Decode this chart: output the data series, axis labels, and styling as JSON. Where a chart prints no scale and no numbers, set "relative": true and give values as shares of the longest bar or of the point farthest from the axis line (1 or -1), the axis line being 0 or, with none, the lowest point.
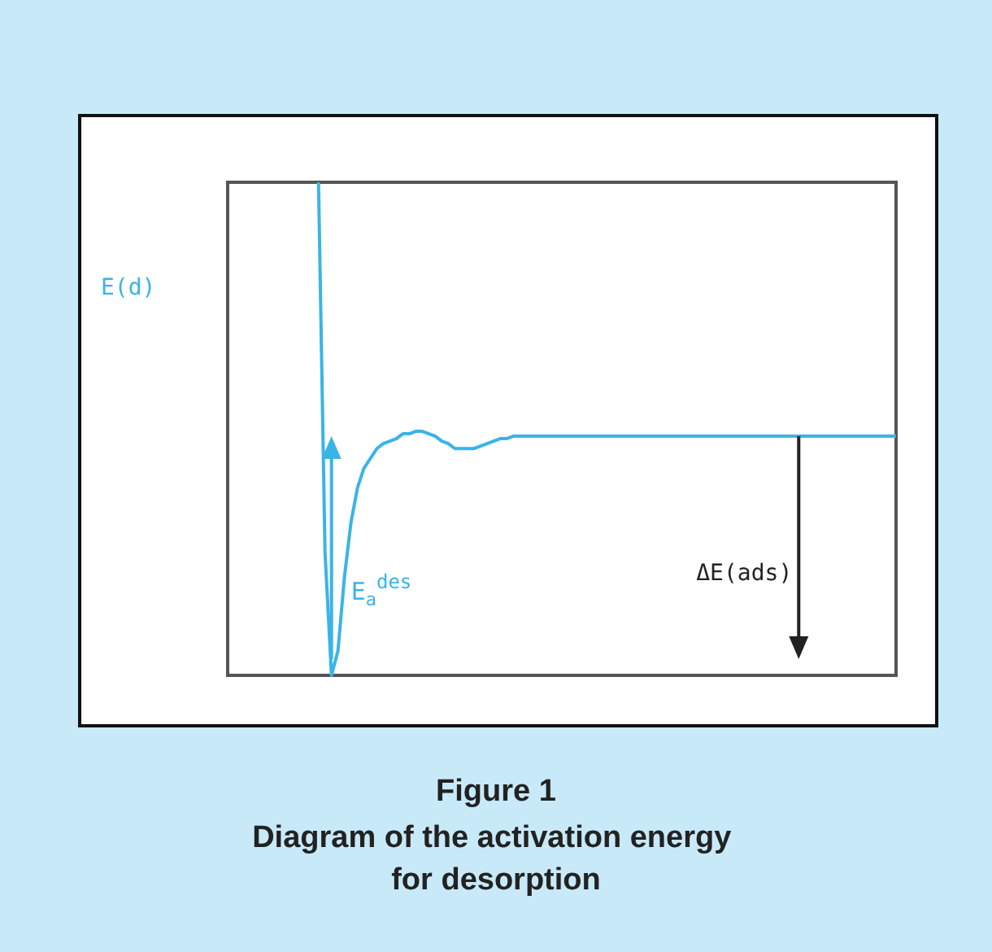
{
  "chart_data": {
    "type": "line",
    "title": "Figure 1",
    "subtitle": "Diagram of the activation energy for desorption",
    "ylabel": "E(d)",
    "relative": true,
    "grid": false,
    "marker": "none",
    "line_style": "solid",
    "annotations": [
      "E$_{a}$$^{des}$",
      "ΔE(ads)"
    ],
    "categories": [
      null,
      null,
      null,
      null,
      null,
      null,
      null,
      null,
      null,
      null,
      null,
      null,
      null,
      null,
      null,
      null,
      null,
      null,
      null,
      null,
      null,
      null,
      null,
      null,
      null,
      null,
      null,
      null,
      null,
      null,
      null,
      null,
      null,
      null,
      null,
      null,
      null,
      null,
      null,
      null,
      null,
      null,
      null,
      null,
      null,
      null,
      null,
      null,
      null,
      null,
      null,
      null,
      null,
      null,
      null,
      null,
      null,
      null,
      null,
      null,
      null,
      null,
      null,
      null,
      null,
      null,
      null,
      null,
      null,
      null,
      null,
      null,
      null,
      null,
      null,
      null,
      null,
      null,
      null,
      null,
      null,
      null,
      null,
      null,
      null,
      null,
      null,
      null,
      null,
      null,
      null,
      null,
      null,
      null,
      null,
      null,
      null,
      null,
      null,
      null,
      null,
      null,
      null,
      null
    ],
    "series": [
      {
        "color": "#3ab4e8",
        "values": [
          null,
          null,
          null,
          null,
          null,
          null,
          null,
          null,
          null,
          null,
          null,
          null,
          null,
          null,
          1,
          0.25,
          0,
          0.05,
          0.2,
          0.31,
          0.38,
          0.42,
          0.44,
          0.46,
          0.47,
          0.475,
          0.48,
          0.49,
          0.49,
          0.495,
          0.495,
          0.49,
          0.485,
          0.475,
          0.47,
          0.46,
          0.46,
          0.46,
          0.46,
          0.465,
          0.47,
          0.475,
          0.48,
          0.48,
          0.485,
          0.485,
          0.485,
          0.485,
          0.485,
          0.485,
          0.485,
          0.485,
          0.485,
          0.485,
          0.485,
          0.485,
          0.485,
          0.485,
          0.485,
          0.485,
          0.485,
          0.485,
          0.485,
          0.485,
          0.485,
          0.485,
          0.485,
          0.485,
          0.485,
          0.485,
          0.485,
          0.485,
          0.485,
          0.485,
          0.485,
          0.485,
          0.485,
          0.485,
          0.485,
          0.485,
          0.485,
          0.485,
          0.485,
          0.485,
          0.485,
          0.485,
          0.485,
          0.485,
          0.485,
          0.485,
          0.485,
          0.485,
          0.485,
          0.485,
          0.485,
          0.485,
          0.485,
          0.485,
          0.485,
          0.485,
          0.485,
          0.485,
          0.485,
          0.485
        ]
      }
    ]
  }
}
